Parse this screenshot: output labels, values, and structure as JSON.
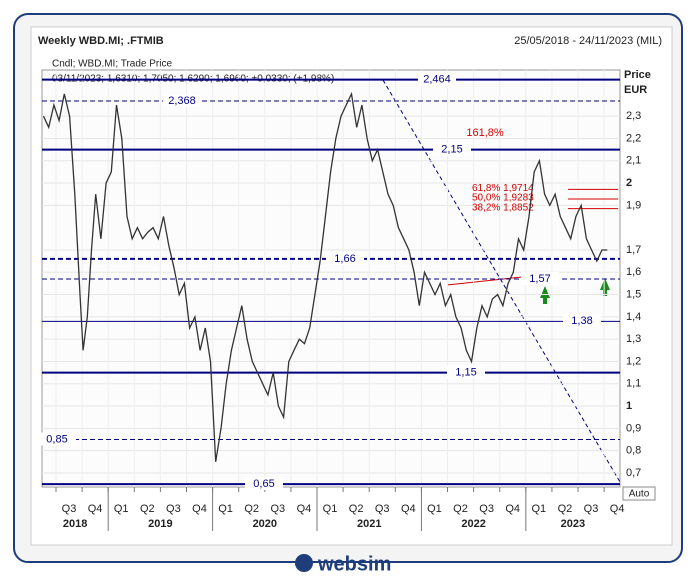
{
  "chart_data": {
    "type": "line",
    "title": "Weekly WBD.MI; .FTMIB",
    "subtitle": "25/05/2018 - 24/11/2023 (MIL)",
    "legend": "Cndl; WBD.MI; Trade Price",
    "info": "03/11/2023; 1,6310; 1,7050; 1,6290; 1,6960; +0,0330; (+1,98%)",
    "y_label": "Price",
    "y_unit": "EUR",
    "scale_mode": "Auto",
    "grid": true,
    "xlim": [
      2018.366,
      2023.902
    ],
    "ylim": [
      0.637,
      2.507
    ],
    "yticks": [
      {
        "value": 2.3,
        "label": "2,3"
      },
      {
        "value": 2.2,
        "label": "2,2"
      },
      {
        "value": 2.1,
        "label": "2,1"
      },
      2,
      {
        "value": 1.9,
        "label": "1,9"
      },
      {
        "value": 1.7,
        "label": "1,7"
      },
      {
        "value": 1.6,
        "label": "1,6"
      },
      {
        "value": 1.5,
        "label": "1,5"
      },
      {
        "value": 1.4,
        "label": "1,4"
      },
      {
        "value": 1.3,
        "label": "1,3"
      },
      {
        "value": 1.2,
        "label": "1,2"
      },
      {
        "value": 1.1,
        "label": "1,1"
      },
      1,
      {
        "value": 0.9,
        "label": "0,9"
      },
      {
        "value": 0.8,
        "label": "0,8"
      },
      {
        "value": 0.7,
        "label": "0,7"
      }
    ],
    "xticks": [
      {
        "value": 2018.5,
        "label": "Q3"
      },
      {
        "value": 2018.75,
        "label": "Q4"
      },
      {
        "value": 2019.0,
        "label": "Q1"
      },
      {
        "value": 2019.25,
        "label": "Q2"
      },
      {
        "value": 2019.5,
        "label": "Q3"
      },
      {
        "value": 2019.75,
        "label": "Q4"
      },
      {
        "value": 2020.0,
        "label": "Q1"
      },
      {
        "value": 2020.25,
        "label": "Q2"
      },
      {
        "value": 2020.5,
        "label": "Q3"
      },
      {
        "value": 2020.75,
        "label": "Q4"
      },
      {
        "value": 2021.0,
        "label": "Q1"
      },
      {
        "value": 2021.25,
        "label": "Q2"
      },
      {
        "value": 2021.5,
        "label": "Q3"
      },
      {
        "value": 2021.75,
        "label": "Q4"
      },
      {
        "value": 2022.0,
        "label": "Q1"
      },
      {
        "value": 2022.25,
        "label": "Q2"
      },
      {
        "value": 2022.5,
        "label": "Q3"
      },
      {
        "value": 2022.75,
        "label": "Q4"
      },
      {
        "value": 2023.0,
        "label": "Q1"
      },
      {
        "value": 2023.25,
        "label": "Q2"
      },
      {
        "value": 2023.5,
        "label": "Q3"
      },
      {
        "value": 2023.75,
        "label": "Q4"
      }
    ],
    "years": [
      2018,
      2019,
      2020,
      2021,
      2022,
      2023
    ],
    "levels": [
      {
        "value": 2.464,
        "label": "2,464",
        "style": "solid"
      },
      {
        "value": 2.368,
        "label": "2,368",
        "style": "dashed"
      },
      {
        "value": 2.15,
        "label": "2,15",
        "style": "solid"
      },
      {
        "value": 1.66,
        "label": "1,66",
        "style": "dashed"
      },
      {
        "value": 1.57,
        "label": "1,57",
        "style": "dashed"
      },
      {
        "value": 1.38,
        "label": "1,38",
        "style": "thin"
      },
      {
        "value": 1.15,
        "label": "1,15",
        "style": "solid"
      },
      {
        "value": 0.85,
        "label": "0,85",
        "style": "dashed"
      },
      {
        "value": 0.65,
        "label": "0,65",
        "style": "solid"
      }
    ],
    "level_color": "#000080",
    "fib_title": "161,8%",
    "fibs": [
      {
        "value": 1.9714,
        "label": "61,8% 1,9714"
      },
      {
        "value": 1.9283,
        "label": "50,0% 1,9283"
      },
      {
        "value": 1.8852,
        "label": "38,2% 1,8852"
      }
    ],
    "fib_color": "#d40000",
    "series": [
      {
        "name": "WBD.MI",
        "color": "#333333",
        "x": [
          2018.38,
          2018.43,
          2018.48,
          2018.53,
          2018.58,
          2018.63,
          2018.68,
          2018.73,
          2018.76,
          2018.8,
          2018.84,
          2018.88,
          2018.93,
          2018.98,
          2019.03,
          2019.08,
          2019.13,
          2019.18,
          2019.23,
          2019.28,
          2019.33,
          2019.38,
          2019.43,
          2019.48,
          2019.53,
          2019.58,
          2019.63,
          2019.68,
          2019.73,
          2019.78,
          2019.83,
          2019.88,
          2019.93,
          2019.98,
          2020.03,
          2020.08,
          2020.13,
          2020.18,
          2020.23,
          2020.28,
          2020.33,
          2020.38,
          2020.43,
          2020.48,
          2020.53,
          2020.58,
          2020.63,
          2020.68,
          2020.73,
          2020.78,
          2020.83,
          2020.88,
          2020.93,
          2020.98,
          2021.03,
          2021.08,
          2021.13,
          2021.18,
          2021.23,
          2021.28,
          2021.33,
          2021.38,
          2021.43,
          2021.48,
          2021.53,
          2021.58,
          2021.63,
          2021.68,
          2021.73,
          2021.78,
          2021.83,
          2021.88,
          2021.93,
          2021.98,
          2022.03,
          2022.08,
          2022.13,
          2022.18,
          2022.23,
          2022.28,
          2022.33,
          2022.38,
          2022.43,
          2022.48,
          2022.53,
          2022.58,
          2022.63,
          2022.68,
          2022.73,
          2022.78,
          2022.83,
          2022.88,
          2022.93,
          2022.98,
          2023.03,
          2023.08,
          2023.13,
          2023.18,
          2023.23,
          2023.28,
          2023.33,
          2023.38,
          2023.43,
          2023.48,
          2023.53,
          2023.58,
          2023.63,
          2023.68,
          2023.73,
          2023.78
        ],
        "values": [
          2.3,
          2.25,
          2.35,
          2.28,
          2.4,
          2.3,
          1.95,
          1.5,
          1.25,
          1.4,
          1.7,
          1.95,
          1.75,
          2.0,
          2.05,
          2.35,
          2.2,
          1.85,
          1.75,
          1.8,
          1.75,
          1.78,
          1.8,
          1.75,
          1.85,
          1.72,
          1.62,
          1.5,
          1.55,
          1.35,
          1.4,
          1.25,
          1.35,
          1.2,
          0.75,
          0.9,
          1.1,
          1.25,
          1.35,
          1.45,
          1.3,
          1.2,
          1.15,
          1.1,
          1.05,
          1.15,
          1.0,
          0.95,
          1.2,
          1.25,
          1.3,
          1.28,
          1.35,
          1.5,
          1.65,
          1.85,
          2.05,
          2.2,
          2.3,
          2.35,
          2.4,
          2.25,
          2.35,
          2.2,
          2.1,
          2.15,
          2.05,
          1.95,
          1.9,
          1.8,
          1.75,
          1.7,
          1.6,
          1.45,
          1.6,
          1.55,
          1.5,
          1.55,
          1.45,
          1.5,
          1.4,
          1.35,
          1.25,
          1.2,
          1.35,
          1.45,
          1.4,
          1.48,
          1.5,
          1.45,
          1.55,
          1.6,
          1.75,
          1.7,
          1.85,
          2.05,
          2.1,
          1.95,
          1.9,
          1.95,
          1.85,
          1.8,
          1.75,
          1.85,
          1.9,
          1.75,
          1.7,
          1.65,
          1.7,
          1.7
        ]
      }
    ],
    "brand": "websim"
  }
}
